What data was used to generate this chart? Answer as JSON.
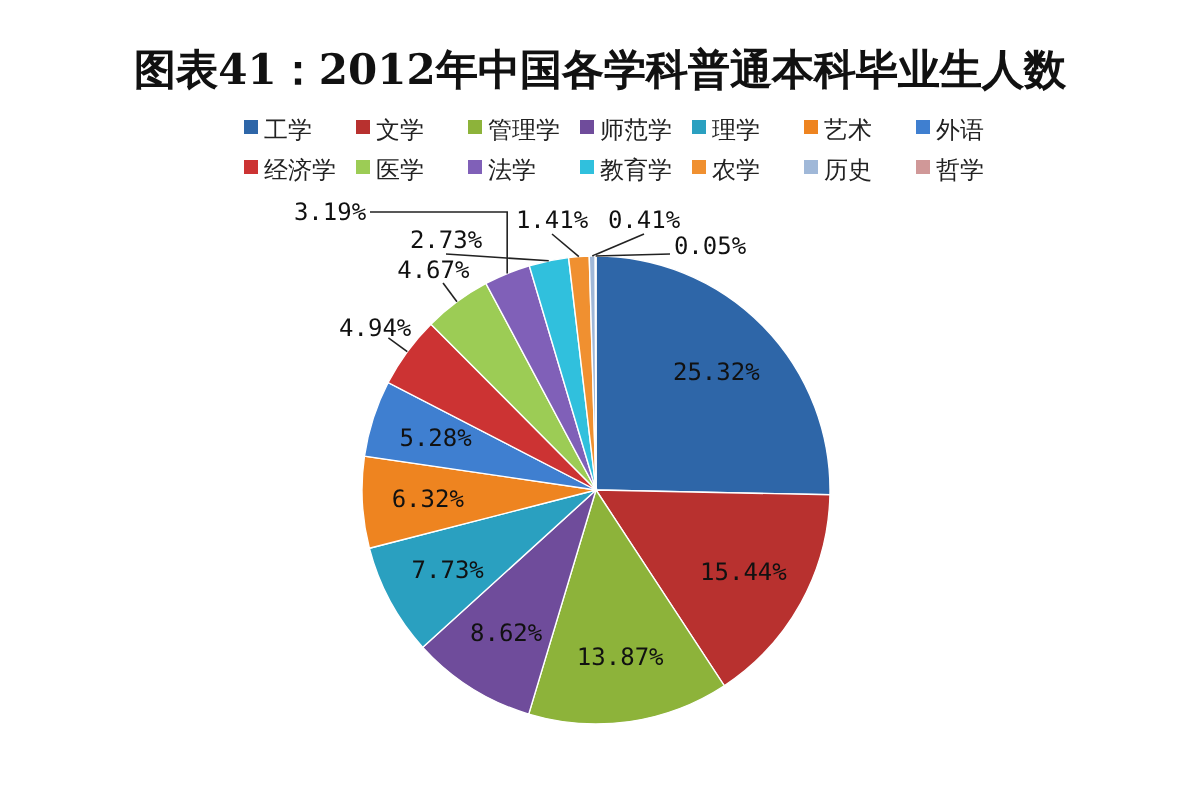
{
  "chart_data": {
    "type": "pie",
    "title": "图表41：2012年中国各学科普通本科毕业生人数",
    "categories": [
      "工学",
      "文学",
      "管理学",
      "师范学",
      "理学",
      "艺术",
      "外语",
      "经济学",
      "医学",
      "法学",
      "教育学",
      "农学",
      "历史",
      "哲学"
    ],
    "values": [
      25.32,
      15.44,
      13.87,
      8.62,
      7.73,
      6.32,
      5.28,
      4.94,
      4.67,
      3.19,
      2.73,
      1.41,
      0.41,
      0.05
    ],
    "colors": [
      "#2e66a8",
      "#b8312f",
      "#8db33a",
      "#6f4c9b",
      "#2aa0c0",
      "#ee8420",
      "#3f7fd0",
      "#cc3333",
      "#9ccc55",
      "#8060b8",
      "#30c0dd",
      "#f09030",
      "#a0b8d8",
      "#d09898"
    ],
    "value_labels": [
      "25.32%",
      "15.44%",
      "13.87%",
      "8.62%",
      "7.73%",
      "6.32%",
      "5.28%",
      "4.94%",
      "4.67%",
      "3.19%",
      "2.73%",
      "1.41%",
      "0.41%",
      "0.05%"
    ],
    "legend": "top"
  }
}
